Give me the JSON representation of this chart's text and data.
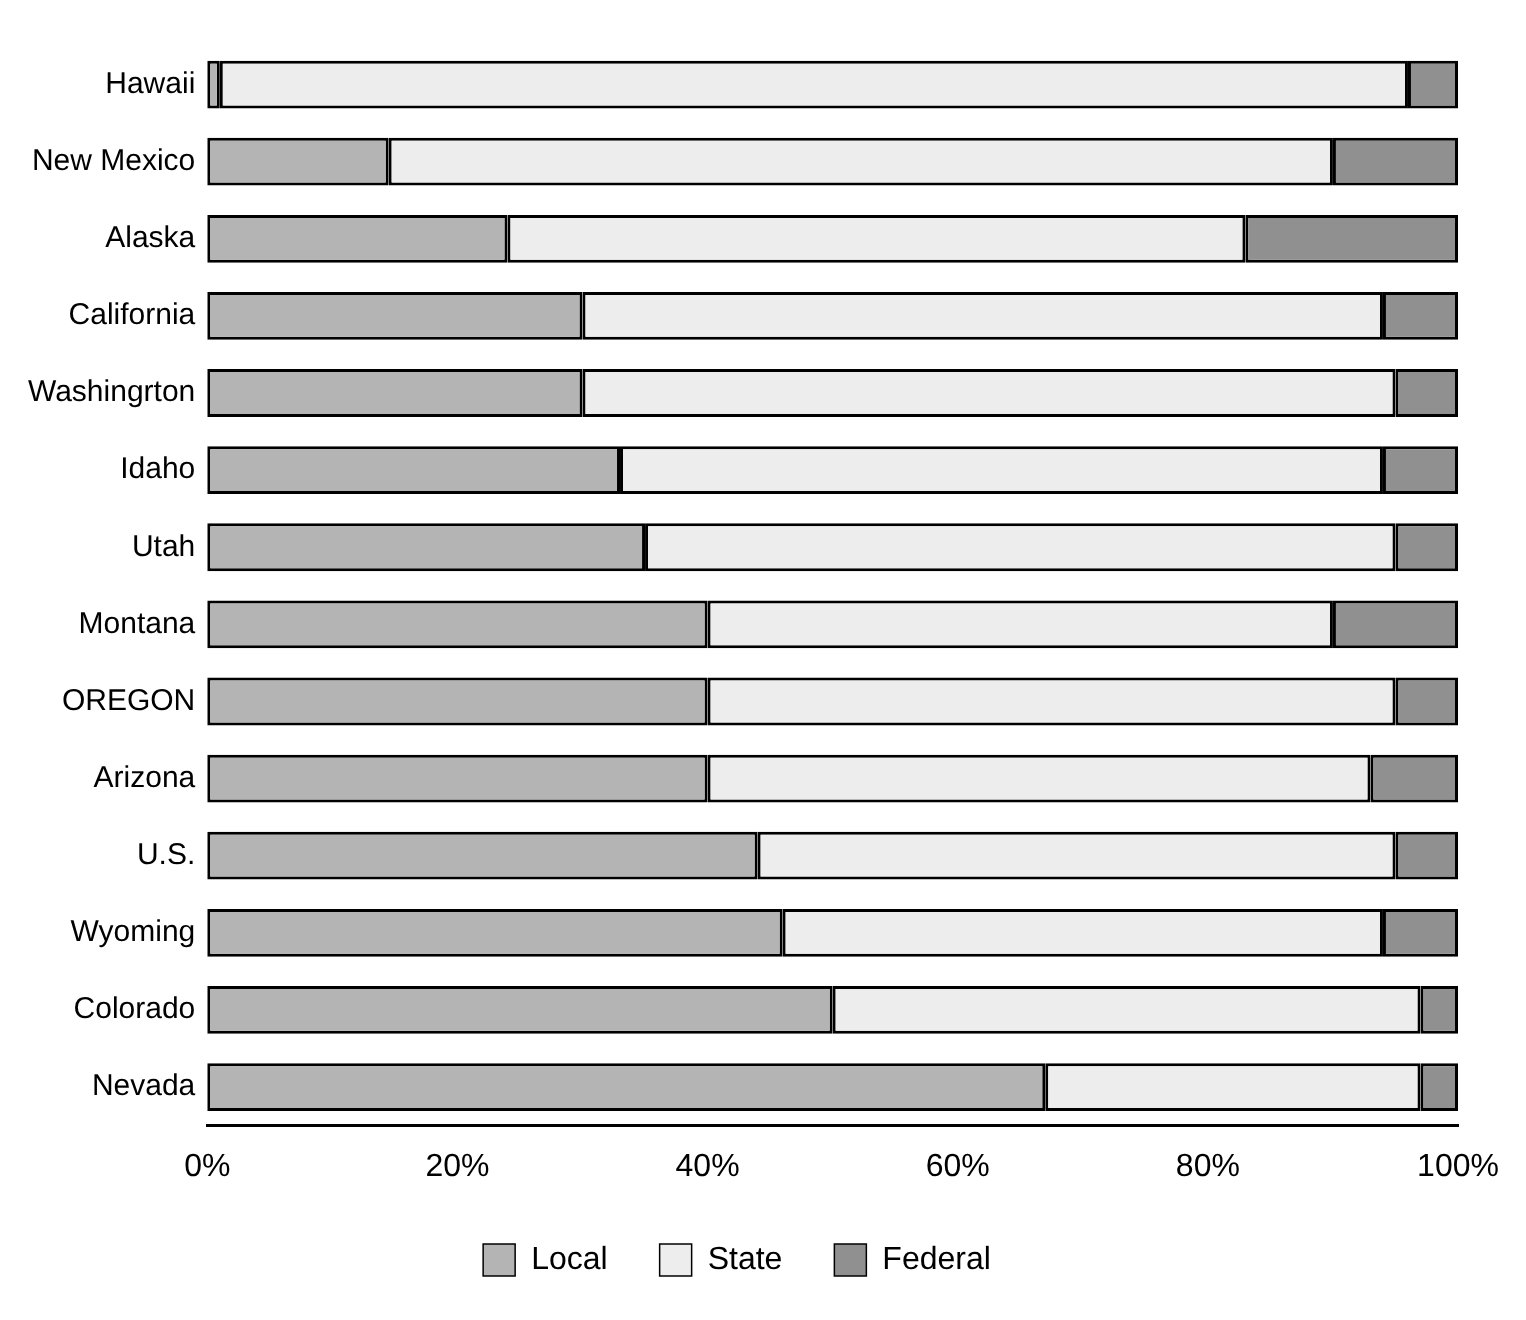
{
  "chart_data": {
    "type": "bar",
    "orientation": "horizontal",
    "stacked": true,
    "categories": [
      "Hawaii",
      "New Mexico",
      "Alaska",
      "California",
      "Washingrton",
      "Idaho",
      "Utah",
      "Montana",
      "OREGON",
      "Arizona",
      "U.S.",
      "Wyoming",
      "Colorado",
      "Nevada"
    ],
    "series": [
      {
        "name": "Local",
        "color": "#b4b4b4",
        "values": [
          1,
          14.5,
          24,
          30,
          30,
          33,
          35,
          40,
          40,
          40,
          44,
          46,
          50,
          67
        ]
      },
      {
        "name": "State",
        "color": "#ededed",
        "values": [
          95,
          75.5,
          59,
          64,
          65,
          61,
          60,
          50,
          55,
          53,
          51,
          48,
          47,
          30
        ]
      },
      {
        "name": "Federal",
        "color": "#909090",
        "values": [
          4,
          10,
          17,
          6,
          5,
          6,
          5,
          10,
          5,
          7,
          5,
          6,
          3,
          3
        ]
      }
    ],
    "xlim": [
      0,
      100
    ],
    "xticks": [
      {
        "value": 0,
        "label": "0%"
      },
      {
        "value": 20,
        "label": "20%"
      },
      {
        "value": 40,
        "label": "40%"
      },
      {
        "value": 60,
        "label": "60%"
      },
      {
        "value": 80,
        "label": "80%"
      },
      {
        "value": 100,
        "label": "100%"
      }
    ],
    "grid": false,
    "legend": "bottom"
  }
}
